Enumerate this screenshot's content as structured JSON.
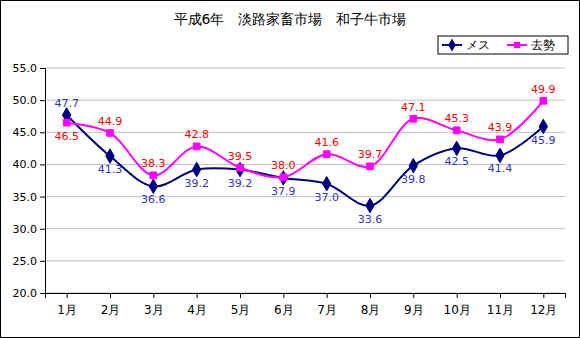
{
  "chart_data": {
    "type": "line",
    "title": "平成6年　淡路家畜市場　和子牛市場",
    "categories": [
      "1月",
      "2月",
      "3月",
      "4月",
      "5月",
      "6月",
      "7月",
      "8月",
      "9月",
      "10月",
      "11月",
      "12月"
    ],
    "series": [
      {
        "name": "メス",
        "color": "#000080",
        "marker": "diamond",
        "line_style": "smooth",
        "values": [
          47.7,
          41.3,
          36.6,
          39.2,
          39.2,
          37.9,
          37.0,
          33.6,
          39.8,
          42.5,
          41.4,
          45.9
        ],
        "value_labels": [
          "47.7",
          "41.3",
          "36.6",
          "39.2",
          "39.2",
          "37.9",
          "37.0",
          "33.6",
          "39.8",
          "42.5",
          "41.4",
          "45.9"
        ]
      },
      {
        "name": "去勢",
        "color": "#ff00ff",
        "marker": "square",
        "line_style": "smooth",
        "values": [
          46.5,
          44.9,
          38.3,
          42.8,
          39.5,
          38.0,
          41.6,
          39.7,
          47.1,
          45.3,
          43.9,
          49.9
        ],
        "value_labels": [
          "46.5",
          "44.9",
          "38.3",
          "42.8",
          "39.5",
          "38.0",
          "41.6",
          "39.7",
          "47.1",
          "45.3",
          "43.9",
          "49.9"
        ]
      }
    ],
    "ylim": [
      20,
      55
    ],
    "yticks": [
      {
        "value": 20,
        "label": "20.0"
      },
      {
        "value": 25,
        "label": "25.0"
      },
      {
        "value": 30,
        "label": "30.0"
      },
      {
        "value": 35,
        "label": "35.0"
      },
      {
        "value": 40,
        "label": "40.0"
      },
      {
        "value": 45,
        "label": "45.0"
      },
      {
        "value": 50,
        "label": "50.0"
      },
      {
        "value": 55,
        "label": "55.0"
      }
    ],
    "grid": true,
    "legend": "top-right",
    "data_labels": true
  }
}
